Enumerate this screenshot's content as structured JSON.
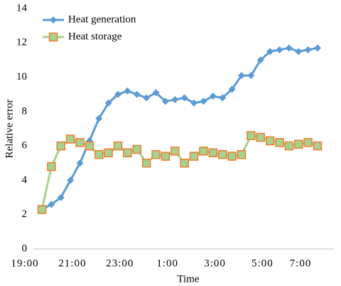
{
  "chart_data": {
    "type": "line",
    "x_label": "Time",
    "y_label": "Relative error",
    "categories": [
      "19:00",
      null,
      null,
      null,
      null,
      "21:00",
      null,
      null,
      null,
      null,
      "23:00",
      null,
      null,
      null,
      null,
      "1:00",
      null,
      null,
      null,
      null,
      "3:00",
      null,
      null,
      null,
      null,
      "5:00",
      null,
      null,
      null,
      "7:00"
    ],
    "series": [
      {
        "name": "Heat generation",
        "color": "#5b9bd5",
        "marker": "diamond",
        "values": [
          2.3,
          2.6,
          3.0,
          4.0,
          5.0,
          6.3,
          7.6,
          8.5,
          9.0,
          9.2,
          9.0,
          8.8,
          9.1,
          8.6,
          8.7,
          8.8,
          8.5,
          8.6,
          8.9,
          8.8,
          9.3,
          10.1,
          10.1,
          11.0,
          11.5,
          11.6,
          11.7,
          11.5,
          11.6,
          11.7
        ]
      },
      {
        "name": "Heat storage",
        "color": "#a9d18e",
        "marker_color": "#ed7d31",
        "marker": "square",
        "values": [
          2.3,
          4.8,
          6.0,
          6.4,
          6.2,
          6.0,
          5.5,
          5.6,
          6.0,
          5.6,
          5.8,
          5.0,
          5.5,
          5.4,
          5.7,
          5.0,
          5.4,
          5.7,
          5.6,
          5.5,
          5.4,
          5.5,
          6.6,
          6.5,
          6.3,
          6.2,
          6.0,
          6.1,
          6.2,
          6.0
        ]
      }
    ],
    "ylim": [
      0,
      14
    ],
    "yticks": [
      0,
      2,
      4,
      6,
      8,
      10,
      12,
      14
    ],
    "grid": false,
    "legend": "upper left"
  }
}
